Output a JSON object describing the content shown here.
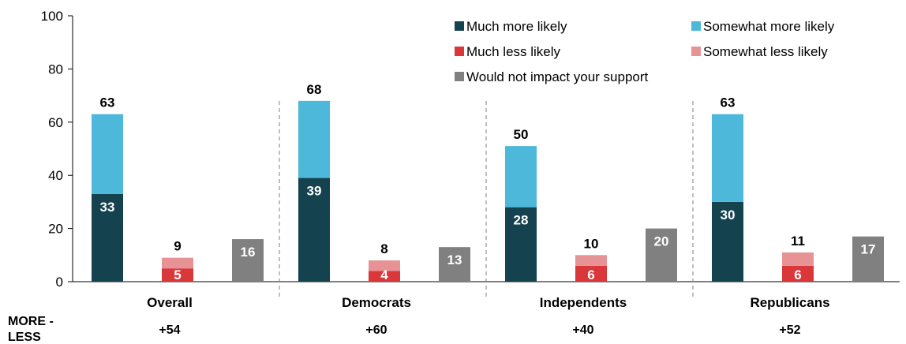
{
  "chart_data": {
    "type": "bar",
    "stacked": true,
    "title": "",
    "xlabel": "",
    "ylabel": "",
    "ylim": [
      0,
      100
    ],
    "yticks": [
      0,
      20,
      40,
      60,
      80,
      100
    ],
    "categories": [
      "Overall",
      "Democrats",
      "Independents",
      "Republicans"
    ],
    "series": [
      {
        "name": "Much more likely",
        "color": "#15424f",
        "values": [
          33,
          39,
          28,
          30
        ]
      },
      {
        "name": "Somewhat more likely",
        "color": "#4db8d9",
        "values": [
          30,
          29,
          23,
          33
        ]
      },
      {
        "name": "Much less likely",
        "color": "#d9373a",
        "values": [
          5,
          4,
          6,
          6
        ]
      },
      {
        "name": "Somewhat less likely",
        "color": "#e79395",
        "values": [
          4,
          4,
          4,
          5
        ]
      },
      {
        "name": "Would not impact your support",
        "color": "#808080",
        "values": [
          16,
          13,
          20,
          17
        ]
      }
    ],
    "totals": {
      "more": [
        63,
        68,
        50,
        63
      ],
      "less": [
        9,
        8,
        10,
        11
      ]
    },
    "legend_order": [
      "Much more likely",
      "Somewhat more likely",
      "Much less likely",
      "Somewhat less likely",
      "Would not impact your support"
    ],
    "legend_position": "top-right",
    "grid": false,
    "separators": "dashed vertical lines between groups"
  },
  "more_less": {
    "label_line1": "MORE -",
    "label_line2": "LESS",
    "values": [
      "+54",
      "+60",
      "+40",
      "+52"
    ]
  }
}
